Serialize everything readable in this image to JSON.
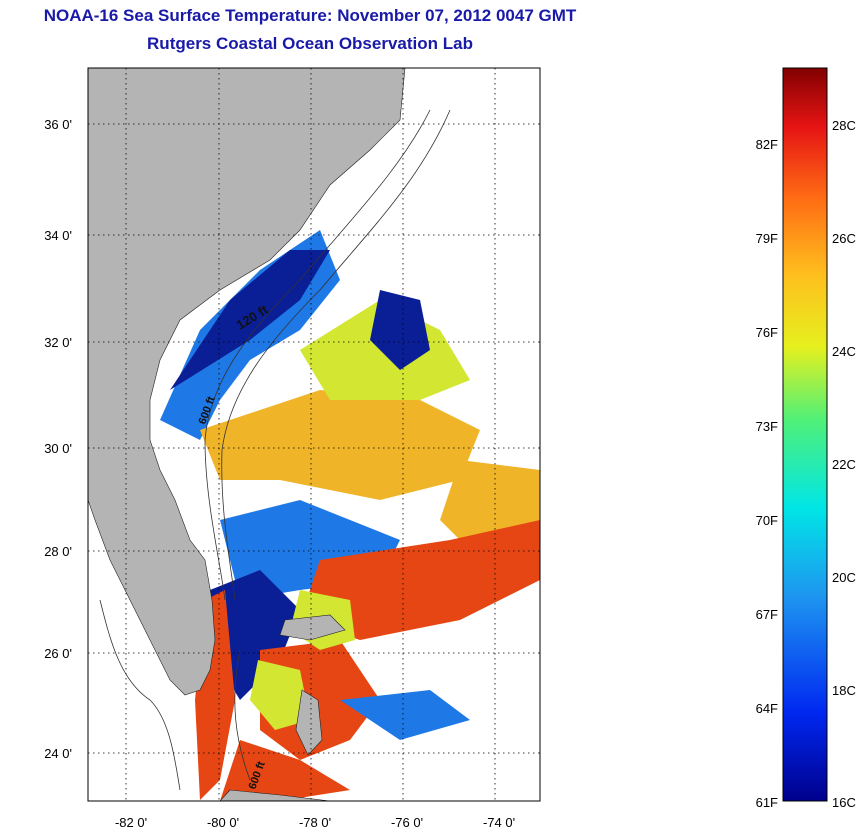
{
  "header": {
    "title": "NOAA-16 Sea Surface Temperature:  November 07, 2012 0047 GMT",
    "subtitle": "Rutgers Coastal Ocean Observation Lab"
  },
  "map": {
    "lat_labels": [
      "36 0'",
      "34 0'",
      "32 0'",
      "30 0'",
      "28 0'",
      "26 0'",
      "24 0'"
    ],
    "lon_labels": [
      "-82 0'",
      "-80 0'",
      "-78 0'",
      "-76 0'",
      "-74 0'"
    ],
    "contour_labels": [
      "120 ft",
      "600 ft",
      "600 ft"
    ],
    "colors": {
      "land": "#b4b4b4",
      "clouds": "#ffffff",
      "cold": "#0a1e96",
      "cool": "#1e78e6",
      "mid": "#3cc8c8",
      "warmish": "#d2e632",
      "warm": "#f0b428",
      "hot": "#e64614"
    }
  },
  "colorbar": {
    "f_labels": [
      "82F",
      "79F",
      "76F",
      "73F",
      "70F",
      "67F",
      "64F",
      "61F"
    ],
    "c_labels": [
      "28C",
      "26C",
      "24C",
      "22C",
      "20C",
      "18C",
      "16C"
    ]
  }
}
